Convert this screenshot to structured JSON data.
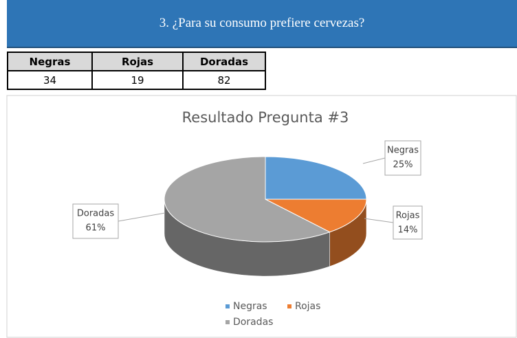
{
  "banner": "3. ¿Para su consumo prefiere cervezas?",
  "table": {
    "headers": [
      "Negras",
      "Rojas",
      "Doradas"
    ],
    "rows": [
      [
        "34",
        "19",
        "82"
      ]
    ]
  },
  "chart_data": {
    "type": "pie",
    "title": "Resultado Pregunta #3",
    "categories": [
      "Negras",
      "Rojas",
      "Doradas"
    ],
    "values": [
      25,
      14,
      61
    ],
    "value_labels": [
      "25%",
      "14%",
      "61%"
    ],
    "colors": [
      "#5b9bd5",
      "#ed7d31",
      "#a5a5a5"
    ],
    "legend": "bottom"
  }
}
